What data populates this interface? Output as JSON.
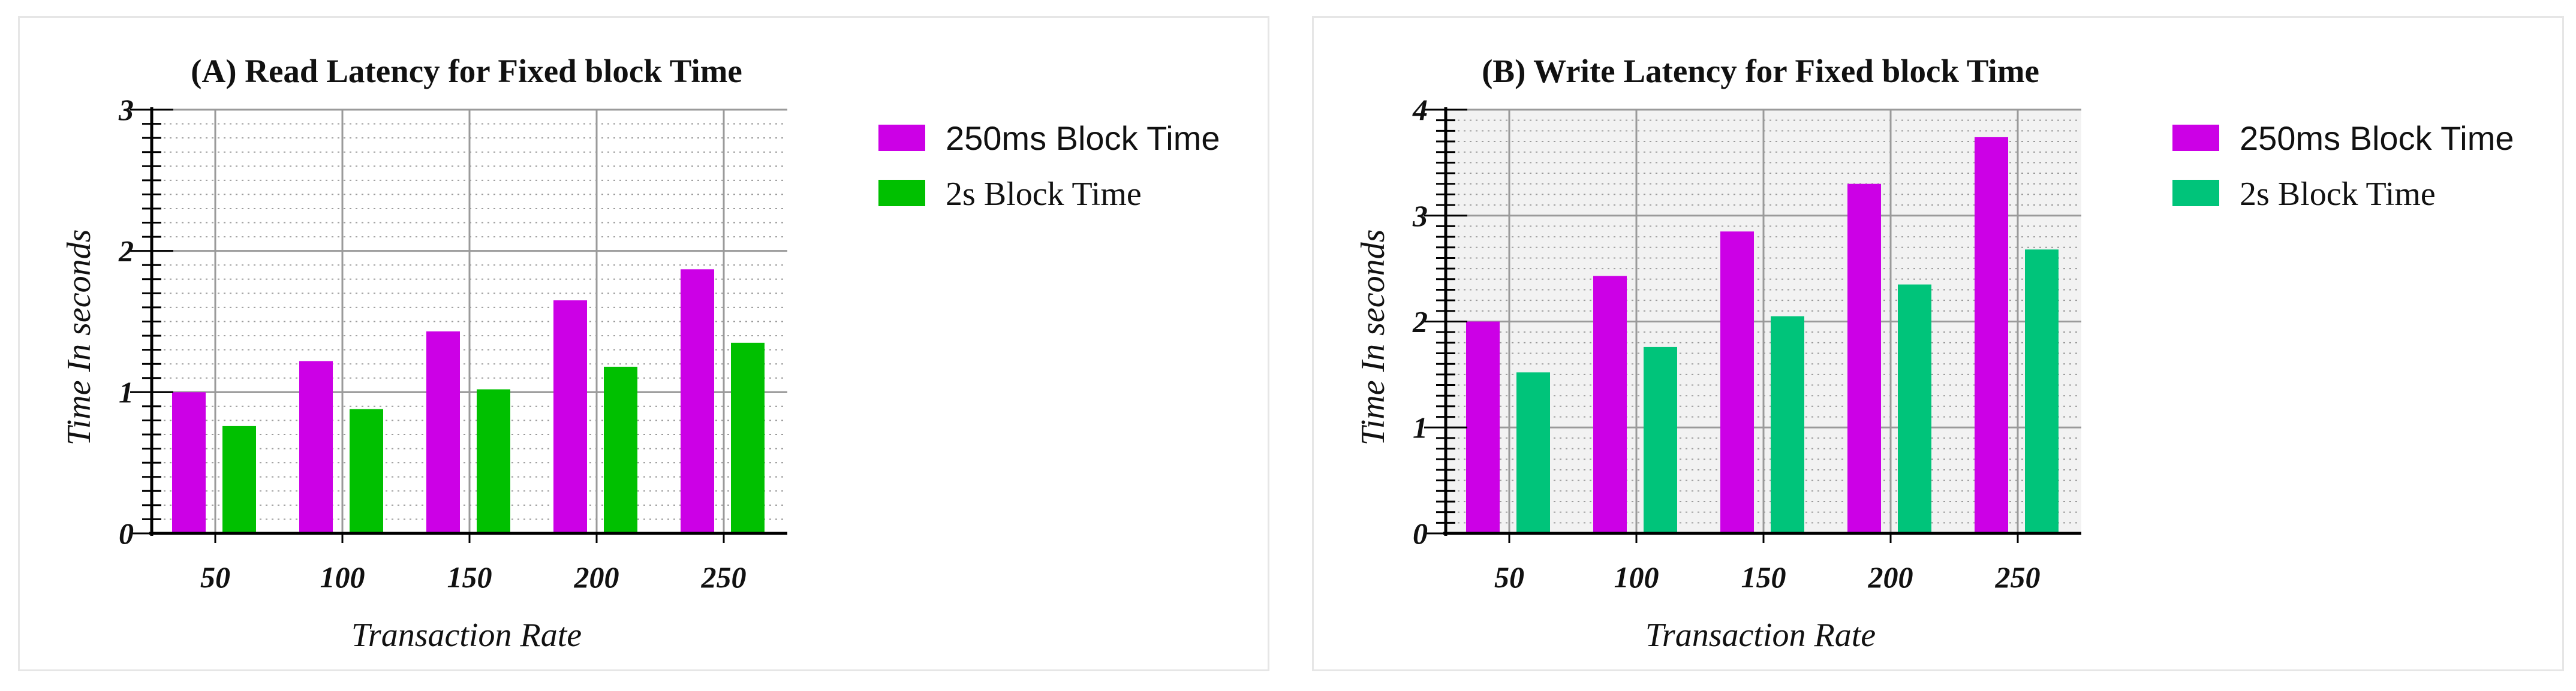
{
  "chart_data": [
    {
      "type": "bar",
      "title": "(A) Read Latency for Fixed block Time",
      "xlabel": "Transaction Rate",
      "ylabel": "Time In seconds",
      "categories": [
        "50",
        "100",
        "150",
        "200",
        "250"
      ],
      "ylim": [
        0,
        3
      ],
      "yticks": [
        "0",
        "1",
        "2",
        "3"
      ],
      "grid": true,
      "plot_background": "#ffffff",
      "legend_position": "right",
      "series": [
        {
          "name": "250ms Block Time",
          "color": "#cc00e6",
          "values": [
            1.0,
            1.22,
            1.43,
            1.65,
            1.87
          ]
        },
        {
          "name": "2s Block Time",
          "color": "#00c000",
          "values": [
            0.76,
            0.88,
            1.02,
            1.18,
            1.35
          ]
        }
      ]
    },
    {
      "type": "bar",
      "title": "(B) Write Latency for Fixed block Time",
      "xlabel": "Transaction Rate",
      "ylabel": "Time In seconds",
      "categories": [
        "50",
        "100",
        "150",
        "200",
        "250"
      ],
      "ylim": [
        0,
        4
      ],
      "yticks": [
        "0",
        "1",
        "2",
        "3",
        "4"
      ],
      "grid": true,
      "plot_background": "#f2f2f2",
      "legend_position": "right",
      "series": [
        {
          "name": "250ms Block Time",
          "color": "#cc00e6",
          "values": [
            2.0,
            2.43,
            2.85,
            3.3,
            3.74
          ]
        },
        {
          "name": "2s Block Time",
          "color": "#00c47a",
          "values": [
            1.52,
            1.76,
            2.05,
            2.35,
            2.68
          ]
        }
      ]
    }
  ]
}
